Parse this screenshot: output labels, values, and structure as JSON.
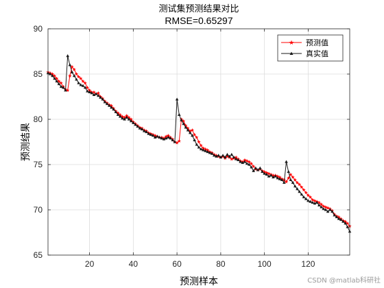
{
  "chart_data": {
    "type": "line",
    "title": "测试集预测结果对比",
    "subtitle": "RMSE=0.65297",
    "xlabel": "预测样本",
    "ylabel": "预测结果",
    "xlim": [
      1,
      139
    ],
    "ylim": [
      65,
      90
    ],
    "xticks": [
      20,
      40,
      60,
      80,
      100,
      120
    ],
    "yticks": [
      65,
      70,
      75,
      80,
      85,
      90
    ],
    "grid": true,
    "legend_position": "top-right",
    "x": [
      1,
      2,
      3,
      4,
      5,
      6,
      7,
      8,
      9,
      10,
      11,
      12,
      13,
      14,
      15,
      16,
      17,
      18,
      19,
      20,
      21,
      22,
      23,
      24,
      25,
      26,
      27,
      28,
      29,
      30,
      31,
      32,
      33,
      34,
      35,
      36,
      37,
      38,
      39,
      40,
      41,
      42,
      43,
      44,
      45,
      46,
      47,
      48,
      49,
      50,
      51,
      52,
      53,
      54,
      55,
      56,
      57,
      58,
      59,
      60,
      61,
      62,
      63,
      64,
      65,
      66,
      67,
      68,
      69,
      70,
      71,
      72,
      73,
      74,
      75,
      76,
      77,
      78,
      79,
      80,
      81,
      82,
      83,
      84,
      85,
      86,
      87,
      88,
      89,
      90,
      91,
      92,
      93,
      94,
      95,
      96,
      97,
      98,
      99,
      100,
      101,
      102,
      103,
      104,
      105,
      106,
      107,
      108,
      109,
      110,
      111,
      112,
      113,
      114,
      115,
      116,
      117,
      118,
      119,
      120,
      121,
      122,
      123,
      124,
      125,
      126,
      127,
      128,
      129,
      130,
      131,
      132,
      133,
      134,
      135,
      136,
      137,
      138,
      139
    ],
    "series": [
      {
        "name": "预测值",
        "color": "#ff0000",
        "marker": "star",
        "values": [
          85.2,
          85.1,
          85.0,
          84.8,
          84.5,
          84.2,
          84.0,
          83.6,
          83.3,
          83.2,
          84.8,
          85.8,
          85.5,
          85.0,
          84.7,
          84.5,
          84.2,
          84.0,
          83.5,
          83.2,
          83.0,
          83.0,
          82.8,
          82.9,
          82.5,
          82.3,
          82.0,
          81.8,
          81.6,
          81.5,
          81.2,
          80.9,
          80.7,
          80.5,
          80.3,
          80.2,
          80.4,
          80.2,
          80.0,
          79.7,
          79.5,
          79.3,
          79.1,
          79.0,
          78.8,
          78.7,
          78.5,
          78.4,
          78.3,
          78.2,
          78.1,
          78.0,
          78.0,
          77.9,
          78.1,
          78.2,
          78.0,
          77.8,
          77.5,
          77.4,
          77.6,
          80.0,
          79.8,
          79.3,
          79.0,
          78.7,
          78.8,
          78.3,
          78.0,
          77.5,
          77.1,
          76.8,
          76.7,
          76.6,
          76.4,
          76.3,
          76.1,
          76.0,
          75.9,
          75.8,
          75.9,
          75.7,
          75.9,
          75.8,
          75.6,
          75.7,
          75.8,
          75.6,
          75.4,
          75.3,
          75.5,
          75.4,
          75.3,
          75.1,
          74.8,
          74.5,
          74.4,
          74.5,
          74.3,
          74.2,
          74.1,
          74.0,
          73.9,
          73.8,
          73.8,
          73.7,
          73.6,
          73.4,
          73.3,
          73.1,
          73.5,
          73.9,
          73.6,
          73.3,
          73.0,
          72.8,
          72.5,
          72.2,
          71.9,
          71.6,
          71.4,
          71.1,
          71.0,
          70.9,
          70.8,
          70.6,
          70.4,
          70.3,
          70.2,
          70.1,
          69.9,
          69.5,
          69.3,
          69.2,
          69.0,
          68.8,
          68.7,
          68.5,
          68.2
        ]
      },
      {
        "name": "真实值",
        "color": "#1a1a1a",
        "marker": "triangle",
        "values": [
          85.1,
          85.0,
          84.8,
          84.5,
          84.2,
          83.9,
          83.6,
          83.5,
          83.2,
          87.0,
          86.0,
          85.2,
          84.8,
          84.4,
          84.0,
          83.8,
          83.7,
          83.5,
          83.1,
          83.0,
          82.9,
          82.7,
          82.8,
          82.6,
          82.4,
          82.2,
          81.9,
          81.7,
          81.5,
          81.3,
          81.1,
          80.8,
          80.5,
          80.3,
          80.1,
          80.0,
          80.2,
          80.0,
          79.8,
          79.6,
          79.4,
          79.2,
          79.0,
          78.9,
          78.7,
          78.6,
          78.4,
          78.3,
          78.2,
          78.0,
          78.1,
          78.0,
          77.9,
          77.8,
          77.9,
          78.0,
          77.9,
          77.7,
          77.5,
          82.2,
          80.5,
          79.9,
          79.5,
          79.1,
          78.8,
          78.5,
          78.2,
          77.7,
          77.2,
          76.9,
          76.7,
          76.6,
          76.5,
          76.4,
          76.3,
          76.2,
          76.0,
          75.9,
          76.0,
          75.8,
          76.0,
          75.8,
          76.1,
          75.9,
          76.1,
          75.8,
          75.6,
          75.5,
          75.3,
          75.2,
          75.3,
          75.1,
          75.0,
          74.7,
          74.3,
          74.6,
          74.4,
          74.6,
          74.2,
          74.0,
          73.9,
          73.7,
          73.8,
          73.6,
          73.7,
          73.5,
          73.4,
          73.3,
          73.0,
          75.3,
          74.2,
          73.3,
          73.0,
          72.6,
          72.3,
          72.0,
          71.7,
          71.4,
          71.2,
          71.0,
          70.9,
          70.8,
          70.7,
          70.8,
          70.5,
          70.3,
          70.1,
          70.0,
          69.8,
          70.0,
          69.8,
          69.4,
          69.2,
          69.0,
          68.9,
          68.7,
          68.5,
          68.1,
          67.6
        ]
      }
    ]
  },
  "watermark": "CSDN @matlab科研社"
}
